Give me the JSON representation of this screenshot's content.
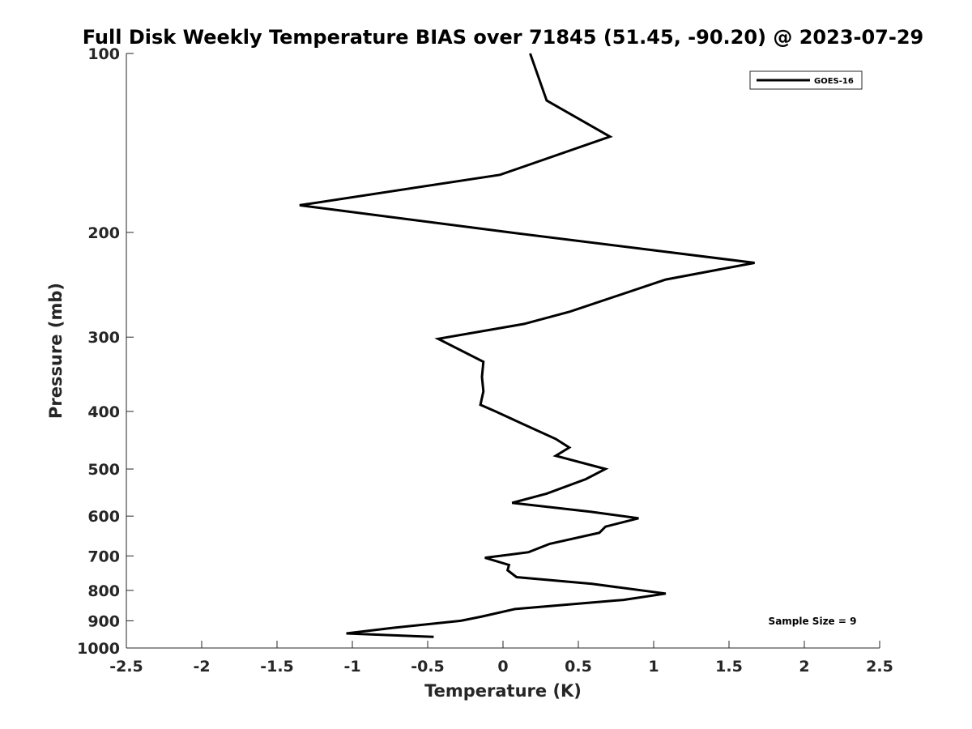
{
  "chart_data": {
    "type": "line",
    "title": "Full Disk Weekly Temperature BIAS over 71845 (51.45, -90.20) @ 2023-07-29",
    "xlabel": "Temperature (K)",
    "ylabel": "Pressure (mb)",
    "xlim": [
      -2.5,
      2.5
    ],
    "ylim": [
      100,
      1000
    ],
    "yscale": "log",
    "y_reversed": true,
    "grid": false,
    "legend_position": "top-right",
    "x_ticks": [
      -2.5,
      -2,
      -1.5,
      -1,
      -0.5,
      0,
      0.5,
      1,
      1.5,
      2,
      2.5
    ],
    "x_tick_labels": [
      "-2.5",
      "-2",
      "-1.5",
      "-1",
      "-0.5",
      "0",
      "0.5",
      "1",
      "1.5",
      "2",
      "2.5"
    ],
    "y_ticks": [
      100,
      200,
      300,
      400,
      500,
      600,
      700,
      800,
      900,
      1000
    ],
    "y_tick_labels": [
      "100",
      "200",
      "300",
      "400",
      "500",
      "600",
      "700",
      "800",
      "900",
      "1000"
    ],
    "series": [
      {
        "name": "GOES-16",
        "color": "#000000",
        "points": [
          [
            0.18,
            100
          ],
          [
            0.29,
            120
          ],
          [
            0.71,
            138
          ],
          [
            -0.02,
            160
          ],
          [
            -1.35,
            180
          ],
          [
            0.05,
            200
          ],
          [
            1.67,
            225
          ],
          [
            1.08,
            240
          ],
          [
            0.44,
            272
          ],
          [
            0.14,
            285
          ],
          [
            -0.43,
            302
          ],
          [
            -0.13,
            330
          ],
          [
            -0.14,
            350
          ],
          [
            -0.13,
            370
          ],
          [
            -0.15,
            390
          ],
          [
            -0.05,
            400
          ],
          [
            0.15,
            422
          ],
          [
            0.35,
            445
          ],
          [
            0.44,
            460
          ],
          [
            0.35,
            475
          ],
          [
            0.68,
            500
          ],
          [
            0.55,
            520
          ],
          [
            0.29,
            550
          ],
          [
            0.06,
            570
          ],
          [
            0.58,
            590
          ],
          [
            0.9,
            605
          ],
          [
            0.68,
            625
          ],
          [
            0.64,
            640
          ],
          [
            0.31,
            668
          ],
          [
            0.17,
            690
          ],
          [
            -0.12,
            705
          ],
          [
            0.04,
            725
          ],
          [
            0.03,
            740
          ],
          [
            0.09,
            760
          ],
          [
            0.59,
            780
          ],
          [
            1.08,
            810
          ],
          [
            0.8,
            830
          ],
          [
            0.08,
            860
          ],
          [
            -0.14,
            885
          ],
          [
            -0.28,
            900
          ],
          [
            -0.73,
            925
          ],
          [
            -1.04,
            945
          ],
          [
            -0.46,
            958
          ]
        ]
      }
    ],
    "annotation": "Sample Size = 9"
  }
}
